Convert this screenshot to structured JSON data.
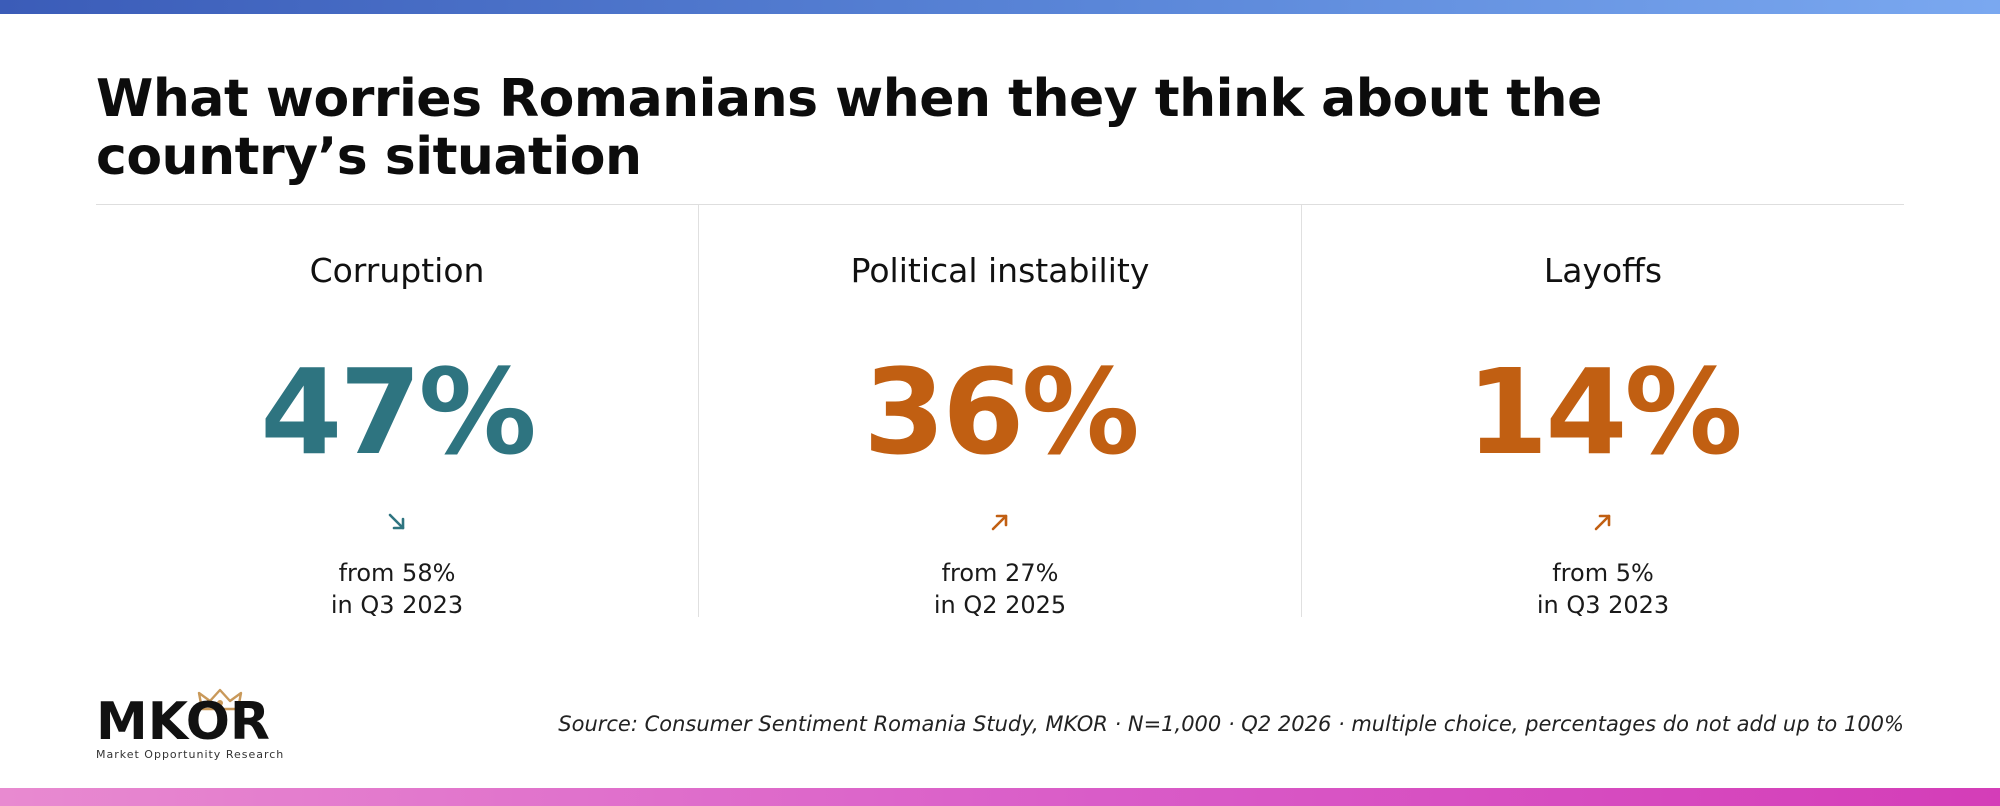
{
  "title": "What worries Romanians when they think about the country’s situation",
  "colors": {
    "down": "#2e7480",
    "up": "#c15f12"
  },
  "chart_data": {
    "type": "table",
    "unit": "%",
    "items": [
      {
        "label": "Corruption",
        "value": 47,
        "value_text": "47%",
        "trend": "down",
        "trend_icon": "arrow-down-right-icon",
        "from_line1": "from 58%",
        "from_line2": "in Q3 2023"
      },
      {
        "label": "Political instability",
        "value": 36,
        "value_text": "36%",
        "trend": "up",
        "trend_icon": "arrow-up-right-icon",
        "from_line1": "from 27%",
        "from_line2": "in Q2 2025"
      },
      {
        "label": "Layoffs",
        "value": 14,
        "value_text": "14%",
        "trend": "up",
        "trend_icon": "arrow-up-right-icon",
        "from_line1": "from 5%",
        "from_line2": "in Q3 2023"
      }
    ]
  },
  "logo": {
    "name": "MKOR",
    "tagline": "Market Opportunity Research",
    "crown_icon": "crown-icon"
  },
  "source": "Source: Consumer Sentiment Romania Study, MKOR · N=1,000 · Q2 2026 · multiple choice, percentages do not add up to 100%"
}
